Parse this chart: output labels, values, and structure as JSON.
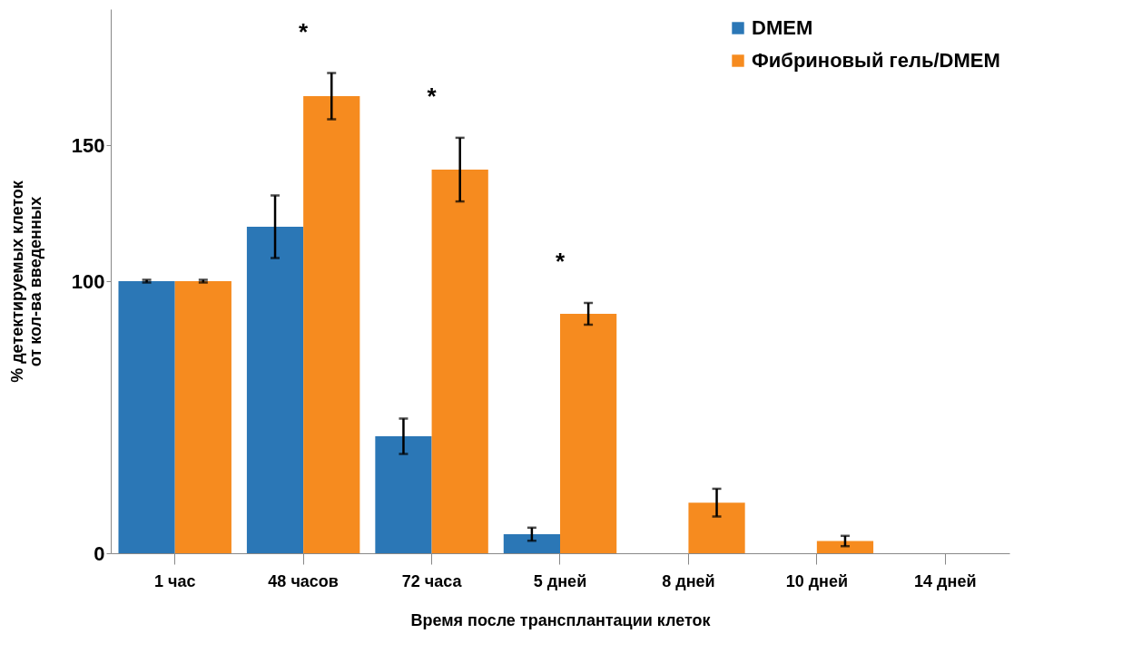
{
  "chart_data": {
    "type": "bar",
    "xlabel": "Время после трансплантации клеток",
    "ylabel": "% детектируемых клеток от кол-ва введенных",
    "categories": [
      "1 час",
      "48 часов",
      "72 часа",
      "5 дней",
      "8 дней",
      "10 дней",
      "14 дней"
    ],
    "series": [
      {
        "name": "DMEM",
        "color": "#2b77b6",
        "values": [
          100,
          120,
          43,
          7,
          0,
          0,
          0
        ],
        "errors": [
          0.5,
          11.5,
          6.5,
          2.4,
          null,
          null,
          null
        ]
      },
      {
        "name": "Фибриновый гель/DMEM",
        "color": "#f68b1f",
        "values": [
          100,
          168,
          141,
          88,
          18.6,
          4.5,
          0
        ],
        "errors": [
          0.5,
          8.5,
          11.7,
          4,
          5.1,
          1.9,
          null
        ]
      }
    ],
    "ylim": [
      0,
      200
    ],
    "yticks": [
      0,
      100,
      150
    ],
    "grid": false,
    "legend": "top right",
    "annotations": [
      "*",
      "*",
      "*"
    ]
  }
}
